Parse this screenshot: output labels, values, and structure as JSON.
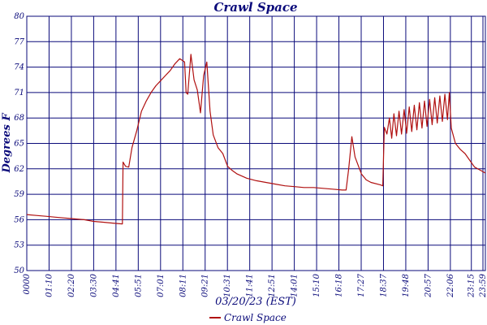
{
  "chart_data": {
    "type": "line",
    "title": "Crawl Space",
    "xlabel": "03/20/23 (EST)",
    "ylabel": "Degrees F",
    "ylim": [
      50,
      80
    ],
    "y_ticks": [
      "50",
      "53",
      "56",
      "59",
      "62",
      "65",
      "68",
      "71",
      "74",
      "77",
      "80"
    ],
    "x_tick_labels": [
      "0000",
      "01:10",
      "02:20",
      "03:30",
      "04:41",
      "05:51",
      "07:01",
      "08:11",
      "09:21",
      "10:31",
      "11:41",
      "12:51",
      "14:01",
      "15:10",
      "16:18",
      "17:27",
      "18:37",
      "19:48",
      "20:57",
      "22:06",
      "23:15",
      "23:59"
    ],
    "grid": true,
    "legend_position": "bottom-center",
    "series": [
      {
        "name": "Crawl Space",
        "color": "#b01010",
        "points": [
          [
            "00:00",
            56.6
          ],
          [
            "00:30",
            56.5
          ],
          [
            "01:00",
            56.4
          ],
          [
            "01:30",
            56.3
          ],
          [
            "02:00",
            56.2
          ],
          [
            "02:30",
            56.1
          ],
          [
            "03:00",
            56.0
          ],
          [
            "03:30",
            55.8
          ],
          [
            "04:00",
            55.7
          ],
          [
            "04:30",
            55.6
          ],
          [
            "05:00",
            55.5
          ],
          [
            "05:02",
            62.8
          ],
          [
            "05:10",
            62.3
          ],
          [
            "05:20",
            62.2
          ],
          [
            "05:30",
            64.5
          ],
          [
            "05:45",
            66.5
          ],
          [
            "06:00",
            68.8
          ],
          [
            "06:15",
            70.0
          ],
          [
            "06:30",
            71.0
          ],
          [
            "06:45",
            71.8
          ],
          [
            "07:00",
            72.4
          ],
          [
            "07:15",
            73.0
          ],
          [
            "07:30",
            73.6
          ],
          [
            "07:45",
            74.4
          ],
          [
            "08:00",
            75.0
          ],
          [
            "08:15",
            74.6
          ],
          [
            "08:20",
            71.0
          ],
          [
            "08:25",
            70.8
          ],
          [
            "08:35",
            75.5
          ],
          [
            "08:45",
            72.5
          ],
          [
            "08:55",
            71.3
          ],
          [
            "09:05",
            68.6
          ],
          [
            "09:15",
            73.0
          ],
          [
            "09:25",
            74.6
          ],
          [
            "09:35",
            68.8
          ],
          [
            "09:45",
            66.0
          ],
          [
            "10:00",
            64.5
          ],
          [
            "10:15",
            63.8
          ],
          [
            "10:30",
            62.3
          ],
          [
            "10:45",
            61.8
          ],
          [
            "11:00",
            61.4
          ],
          [
            "11:30",
            60.9
          ],
          [
            "12:00",
            60.6
          ],
          [
            "12:30",
            60.4
          ],
          [
            "13:00",
            60.2
          ],
          [
            "13:30",
            60.0
          ],
          [
            "14:00",
            59.9
          ],
          [
            "14:30",
            59.8
          ],
          [
            "15:00",
            59.8
          ],
          [
            "15:30",
            59.7
          ],
          [
            "16:00",
            59.6
          ],
          [
            "16:30",
            59.5
          ],
          [
            "16:42",
            59.5
          ],
          [
            "16:50",
            62.0
          ],
          [
            "17:00",
            65.8
          ],
          [
            "17:10",
            63.4
          ],
          [
            "17:20",
            62.4
          ],
          [
            "17:30",
            61.4
          ],
          [
            "17:45",
            60.7
          ],
          [
            "18:00",
            60.4
          ],
          [
            "18:30",
            60.1
          ],
          [
            "18:37",
            60.0
          ],
          [
            "18:42",
            66.9
          ],
          [
            "18:50",
            66.1
          ],
          [
            "18:58",
            68.0
          ],
          [
            "19:05",
            65.6
          ],
          [
            "19:12",
            68.5
          ],
          [
            "19:20",
            65.9
          ],
          [
            "19:28",
            68.8
          ],
          [
            "19:36",
            66.1
          ],
          [
            "19:44",
            69.0
          ],
          [
            "19:52",
            66.2
          ],
          [
            "20:00",
            69.3
          ],
          [
            "20:08",
            66.4
          ],
          [
            "20:16",
            69.5
          ],
          [
            "20:24",
            66.6
          ],
          [
            "20:32",
            69.8
          ],
          [
            "20:40",
            66.8
          ],
          [
            "20:48",
            70.0
          ],
          [
            "20:56",
            67.0
          ],
          [
            "21:04",
            70.2
          ],
          [
            "21:12",
            67.2
          ],
          [
            "21:20",
            70.4
          ],
          [
            "21:28",
            67.4
          ],
          [
            "21:36",
            70.6
          ],
          [
            "21:44",
            67.6
          ],
          [
            "21:52",
            70.8
          ],
          [
            "22:00",
            67.8
          ],
          [
            "22:06",
            71.0
          ],
          [
            "22:12",
            66.8
          ],
          [
            "22:25",
            65.0
          ],
          [
            "22:40",
            64.3
          ],
          [
            "22:55",
            63.8
          ],
          [
            "23:10",
            63.0
          ],
          [
            "23:25",
            62.2
          ],
          [
            "23:45",
            61.8
          ],
          [
            "23:59",
            61.5
          ]
        ]
      }
    ]
  }
}
